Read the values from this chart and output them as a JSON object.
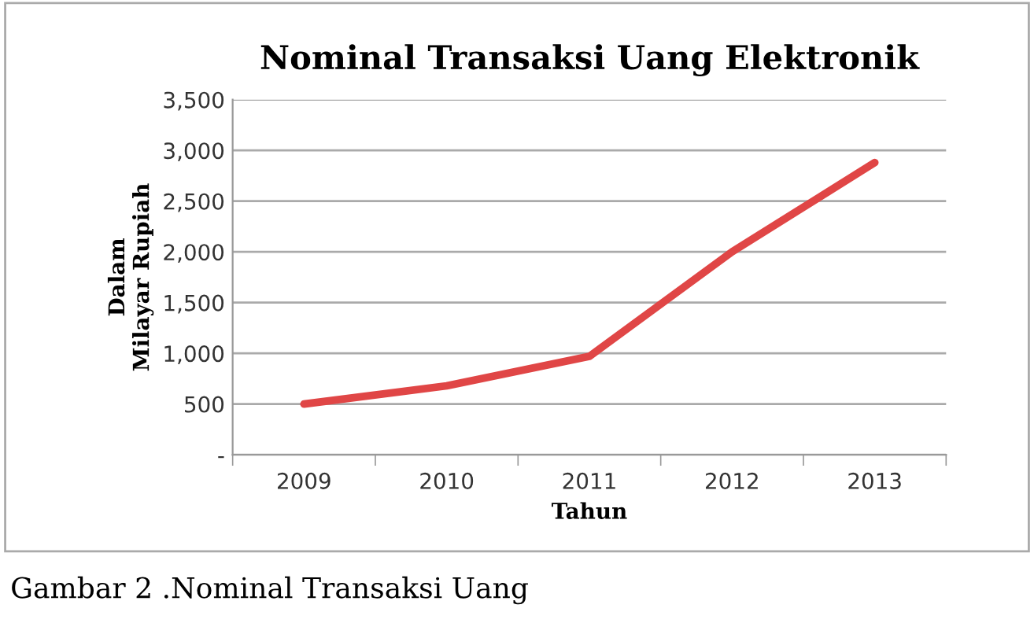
{
  "chart_data": {
    "type": "line",
    "title": "Nominal Transaksi Uang Elektronik",
    "xlabel": "Tahun",
    "ylabel": "Dalam\nMilayar Rupiah",
    "categories": [
      "2009",
      "2010",
      "2011",
      "2012",
      "2013"
    ],
    "series": [
      {
        "color": "#e04646",
        "values": [
          500,
          680,
          970,
          2000,
          2880
        ]
      }
    ],
    "ylim": [
      0,
      3500
    ],
    "yticks": [
      {
        "value": 0,
        "label": "-"
      },
      {
        "value": 500,
        "label": "500"
      },
      {
        "value": 1000,
        "label": "1,000"
      },
      {
        "value": 1500,
        "label": "1,500"
      },
      {
        "value": 2000,
        "label": "2,000"
      },
      {
        "value": 2500,
        "label": "2,500"
      },
      {
        "value": 3000,
        "label": "3,000"
      },
      {
        "value": 3500,
        "label": "3,500"
      }
    ],
    "grid": "y",
    "legend": false,
    "marker": "none",
    "line_style": "solid",
    "annotations": [
      "Gambar 2 .Nominal Transaksi Uang"
    ]
  }
}
